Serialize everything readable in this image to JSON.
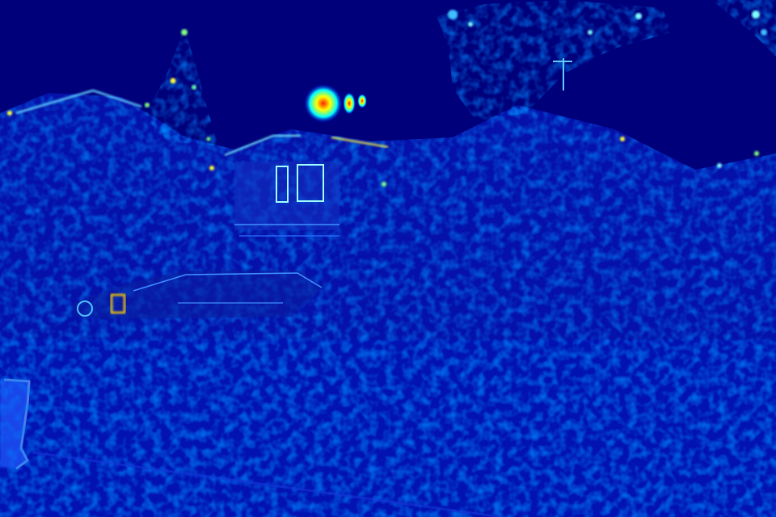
{
  "image": {
    "kind": "edge-magnitude heatmap (jet colormap) of a suburban street photo",
    "colormap": [
      "#00007f",
      "#0000ff",
      "#0080ff",
      "#00ffff",
      "#80ff80",
      "#ffff00",
      "#ff8000",
      "#ff0000"
    ],
    "background_color": "#00007a"
  },
  "scene": {
    "objects": [
      "sky-region",
      "deciduous-tree-canopy",
      "conifer-tree-left",
      "conifer-tree-center",
      "house-with-gable-roof",
      "house-window",
      "parked-suv",
      "hedge-foliage",
      "antenna-pole",
      "fire-hydrant",
      "street-ground"
    ]
  }
}
